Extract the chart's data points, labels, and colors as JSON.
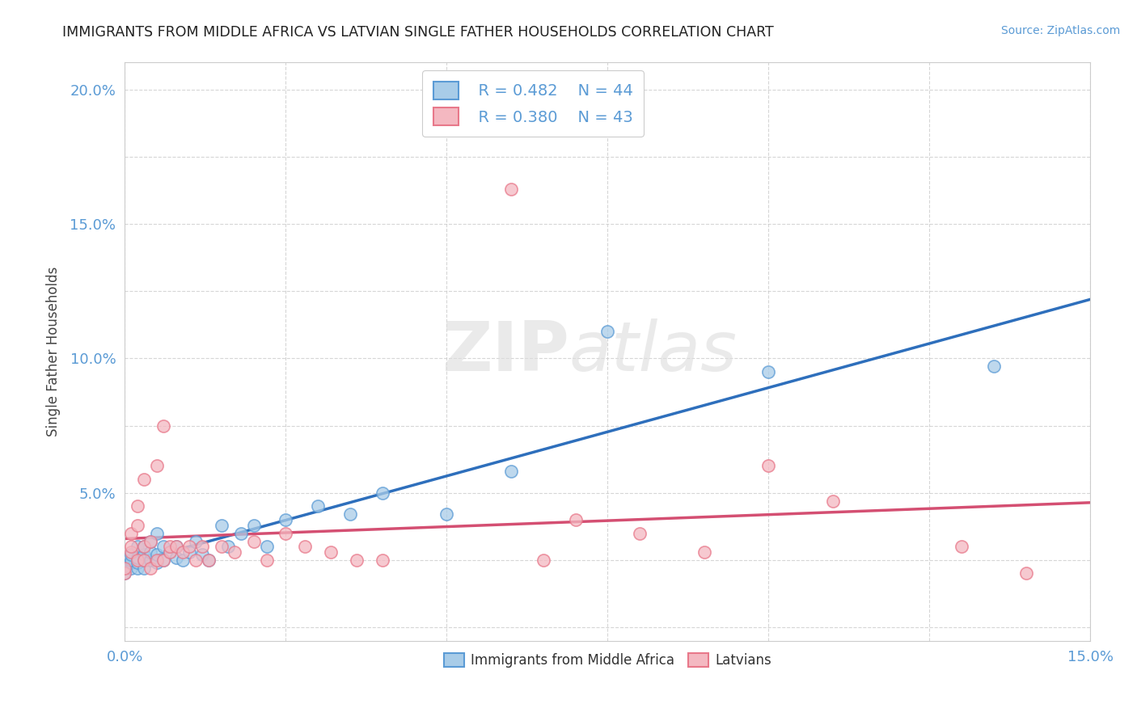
{
  "title": "IMMIGRANTS FROM MIDDLE AFRICA VS LATVIAN SINGLE FATHER HOUSEHOLDS CORRELATION CHART",
  "source": "Source: ZipAtlas.com",
  "ylabel": "Single Father Households",
  "xlim": [
    0.0,
    0.15
  ],
  "ylim": [
    -0.005,
    0.21
  ],
  "legend_blue_r": "R = 0.482",
  "legend_blue_n": "N = 44",
  "legend_pink_r": "R = 0.380",
  "legend_pink_n": "N = 43",
  "blue_color": "#a8cce8",
  "blue_edge_color": "#5b9bd5",
  "pink_color": "#f4b8c1",
  "pink_edge_color": "#e8788a",
  "blue_line_color": "#2e6fbc",
  "pink_line_color": "#d44f72",
  "watermark_zip": "ZIP",
  "watermark_atlas": "atlas",
  "blue_scatter_x": [
    0.0,
    0.0,
    0.001,
    0.001,
    0.001,
    0.001,
    0.002,
    0.002,
    0.002,
    0.002,
    0.003,
    0.003,
    0.003,
    0.003,
    0.004,
    0.004,
    0.004,
    0.005,
    0.005,
    0.005,
    0.006,
    0.006,
    0.007,
    0.008,
    0.008,
    0.009,
    0.01,
    0.011,
    0.012,
    0.013,
    0.015,
    0.016,
    0.018,
    0.02,
    0.022,
    0.025,
    0.03,
    0.035,
    0.04,
    0.05,
    0.06,
    0.075,
    0.1,
    0.135
  ],
  "blue_scatter_y": [
    0.02,
    0.023,
    0.022,
    0.024,
    0.025,
    0.027,
    0.022,
    0.024,
    0.026,
    0.03,
    0.022,
    0.025,
    0.027,
    0.03,
    0.025,
    0.028,
    0.032,
    0.024,
    0.027,
    0.035,
    0.025,
    0.03,
    0.028,
    0.026,
    0.03,
    0.025,
    0.028,
    0.032,
    0.027,
    0.025,
    0.038,
    0.03,
    0.035,
    0.038,
    0.03,
    0.04,
    0.045,
    0.042,
    0.05,
    0.042,
    0.058,
    0.11,
    0.095,
    0.097
  ],
  "pink_scatter_x": [
    0.0,
    0.0,
    0.001,
    0.001,
    0.001,
    0.002,
    0.002,
    0.002,
    0.003,
    0.003,
    0.003,
    0.004,
    0.004,
    0.005,
    0.005,
    0.006,
    0.006,
    0.007,
    0.007,
    0.008,
    0.009,
    0.01,
    0.011,
    0.012,
    0.013,
    0.015,
    0.017,
    0.02,
    0.022,
    0.025,
    0.028,
    0.032,
    0.036,
    0.04,
    0.06,
    0.065,
    0.07,
    0.08,
    0.09,
    0.1,
    0.11,
    0.13,
    0.14
  ],
  "pink_scatter_y": [
    0.02,
    0.022,
    0.028,
    0.03,
    0.035,
    0.025,
    0.038,
    0.045,
    0.025,
    0.03,
    0.055,
    0.022,
    0.032,
    0.025,
    0.06,
    0.025,
    0.075,
    0.028,
    0.03,
    0.03,
    0.028,
    0.03,
    0.025,
    0.03,
    0.025,
    0.03,
    0.028,
    0.032,
    0.025,
    0.035,
    0.03,
    0.028,
    0.025,
    0.025,
    0.163,
    0.025,
    0.04,
    0.035,
    0.028,
    0.06,
    0.047,
    0.03,
    0.02
  ]
}
